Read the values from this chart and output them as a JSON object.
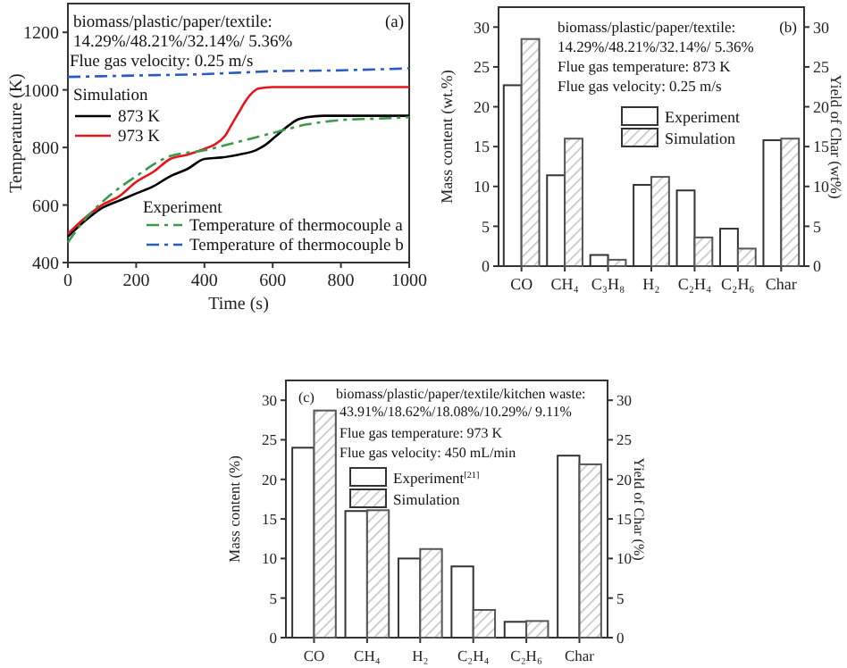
{
  "chart_data": [
    {
      "type": "line",
      "xlabel": "Time (s)",
      "ylabel": "Temperature (K)",
      "legend": "left",
      "legend_title": "Simulation",
      "xlim": [
        0,
        1000
      ],
      "xticks": [
        0,
        200,
        400,
        600,
        800,
        1000
      ],
      "ylim": [
        400,
        1300
      ],
      "yticks": [
        400,
        600,
        800,
        1000,
        1200
      ],
      "annotations": [
        "biomass/plastic/paper/textile:",
        "14.29%/48.21%/32.14%/ 5.36%",
        "Flue gas velocity: 0.25 m/s",
        "(a)",
        "Experiment"
      ],
      "series": [
        {
          "name": "873 K",
          "color": "#000000",
          "line_style": "solid",
          "x": [
            0,
            50,
            100,
            150,
            200,
            250,
            300,
            350,
            400,
            450,
            500,
            550,
            580,
            610,
            640,
            670,
            700,
            750,
            800,
            1000
          ],
          "values": [
            490,
            545,
            590,
            615,
            640,
            665,
            700,
            725,
            760,
            765,
            775,
            790,
            810,
            840,
            870,
            895,
            905,
            910,
            910,
            910
          ]
        },
        {
          "name": "973 K",
          "color": "#e8141c",
          "line_style": "solid",
          "x": [
            0,
            50,
            100,
            150,
            200,
            250,
            300,
            350,
            400,
            430,
            460,
            480,
            500,
            520,
            540,
            560,
            600,
            700,
            800,
            1000
          ],
          "values": [
            500,
            555,
            600,
            630,
            680,
            715,
            760,
            775,
            795,
            810,
            840,
            880,
            920,
            960,
            990,
            1005,
            1010,
            1010,
            1010,
            1010
          ]
        },
        {
          "name": "Temperature of thermocouple a",
          "color": "#3a9a4a",
          "line_style": "dashed",
          "x": [
            0,
            50,
            100,
            200,
            300,
            400,
            500,
            600,
            700,
            800,
            900,
            1000
          ],
          "values": [
            470,
            550,
            610,
            700,
            770,
            790,
            820,
            850,
            880,
            895,
            900,
            905
          ]
        },
        {
          "name": "Temperature of thermocouple b",
          "color": "#2a5bbf",
          "line_style": "dashed",
          "x": [
            0,
            200,
            400,
            500,
            600,
            800,
            1000
          ],
          "values": [
            1045,
            1050,
            1055,
            1060,
            1065,
            1068,
            1075
          ]
        }
      ]
    },
    {
      "type": "bar",
      "ylabel": "Mass content (wt.%)",
      "y2label": "Yield of Char (wt%)",
      "legend": "top",
      "ylim": [
        0,
        32.5
      ],
      "yticks": [
        0,
        5,
        10,
        15,
        20,
        25,
        30
      ],
      "y2lim": [
        0,
        32.5
      ],
      "y2ticks": [
        0,
        5,
        10,
        15,
        20,
        25,
        30
      ],
      "categories": [
        "CO",
        "CH₄",
        "C₃H₈",
        "H₂",
        "C₂H₄",
        "C₂H₆",
        "Char"
      ],
      "annotations": [
        "biomass/plastic/paper/textile:",
        "14.29%/48.21%/32.14%/ 5.36%",
        "Flue gas temperature: 873 K",
        "Flue gas velocity: 0.25 m/s",
        "(b)"
      ],
      "series": [
        {
          "name": "Experiment",
          "color": "#ffffff",
          "values": [
            22.7,
            11.4,
            1.4,
            10.2,
            9.5,
            4.7,
            15.8
          ]
        },
        {
          "name": "Simulation",
          "color": "#555555",
          "values": [
            28.5,
            16.0,
            0.8,
            11.2,
            3.6,
            2.2,
            16.0
          ]
        }
      ]
    },
    {
      "type": "bar",
      "ylabel": "Mass content (%)",
      "y2label": "Yield of Char (%)",
      "legend": "top left",
      "ylim": [
        0,
        32.5
      ],
      "yticks": [
        0,
        5,
        10,
        15,
        20,
        25,
        30
      ],
      "y2lim": [
        0,
        32.5
      ],
      "y2ticks": [
        0,
        5,
        10,
        15,
        20,
        25,
        30
      ],
      "categories": [
        "CO",
        "CH₄",
        "H₂",
        "C₂H₄",
        "C₂H₆",
        "Char"
      ],
      "annotations": [
        "(c)",
        "biomass/plastic/paper/textile/kitchen waste:",
        "43.91%/18.62%/18.08%/10.29%/ 9.11%",
        "Flue gas temperature: 973 K",
        "Flue gas velocity: 450 mL/min"
      ],
      "series": [
        {
          "name": "Experiment$^{[21]}$",
          "color": "#ffffff",
          "values": [
            24.0,
            16.0,
            10.0,
            9.0,
            2.0,
            23.0
          ]
        },
        {
          "name": "Simulation",
          "color": "#555555",
          "values": [
            28.7,
            16.1,
            11.2,
            3.5,
            2.1,
            21.9
          ]
        }
      ]
    }
  ]
}
